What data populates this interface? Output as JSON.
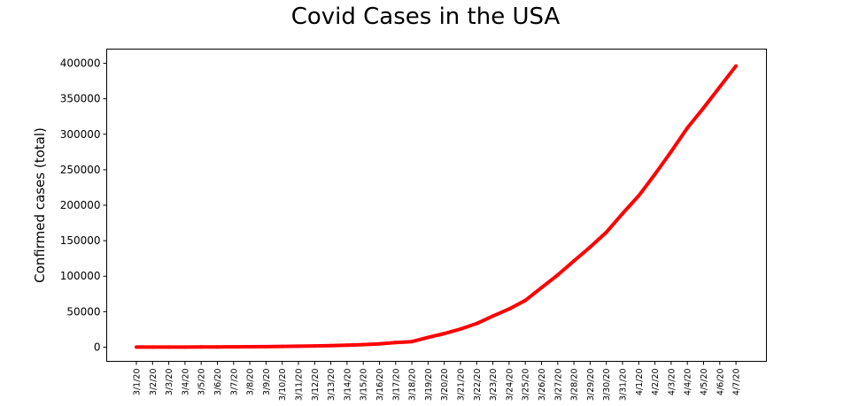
{
  "chart_data": {
    "type": "line",
    "title": "Covid Cases in the USA",
    "xlabel": "",
    "ylabel": "Confirmed cases (total)",
    "ylim": [
      -20000,
      420000
    ],
    "yticks": [
      0,
      50000,
      100000,
      150000,
      200000,
      250000,
      300000,
      350000,
      400000
    ],
    "grid": false,
    "categories": [
      "3/1/20",
      "3/2/20",
      "3/3/20",
      "3/4/20",
      "3/5/20",
      "3/6/20",
      "3/7/20",
      "3/8/20",
      "3/9/20",
      "3/10/20",
      "3/11/20",
      "3/12/20",
      "3/13/20",
      "3/14/20",
      "3/15/20",
      "3/16/20",
      "3/17/20",
      "3/18/20",
      "3/19/20",
      "3/20/20",
      "3/21/20",
      "3/22/20",
      "3/23/20",
      "3/24/20",
      "3/25/20",
      "3/26/20",
      "3/27/20",
      "3/28/20",
      "3/29/20",
      "3/30/20",
      "3/31/20",
      "4/1/20",
      "4/2/20",
      "4/3/20",
      "4/4/20",
      "4/5/20",
      "4/6/20",
      "4/7/20"
    ],
    "series": [
      {
        "color": "#ff0000",
        "values": [
          75,
          100,
          124,
          158,
          221,
          319,
          435,
          541,
          704,
          994,
          1301,
          1630,
          2183,
          2727,
          3499,
          4632,
          6421,
          7786,
          13680,
          19101,
          25493,
          33276,
          43847,
          53740,
          65778,
          83836,
          101657,
          121465,
          140909,
          161831,
          188172,
          213372,
          243616,
          275586,
          308853,
          337072,
          366667,
          396223
        ]
      }
    ]
  }
}
